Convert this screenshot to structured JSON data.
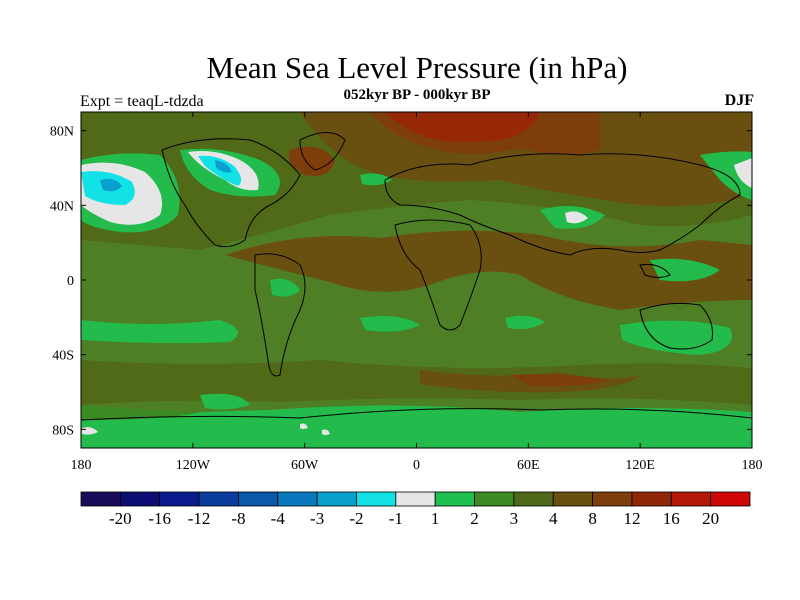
{
  "header": {
    "title": "Mean Sea Level Pressure (in hPa)",
    "subtitle": "052kyr BP - 000kyr BP",
    "experiment": "Expt = teaqL-tdzda",
    "season": "DJF"
  },
  "map": {
    "lon_ticks": [
      "180",
      "120W",
      "60W",
      "0",
      "60E",
      "120E",
      "180"
    ],
    "lat_ticks": [
      "80N",
      "40N",
      "0",
      "40S",
      "80S"
    ]
  },
  "colorbar": {
    "colors": [
      "#1a0a5a",
      "#0c0c72",
      "#071b8c",
      "#0a3c9e",
      "#0a58aa",
      "#0a78bd",
      "#0aa0cd",
      "#12e2e6",
      "#e6e6e6",
      "#1ec050",
      "#3c8a22",
      "#4e6818",
      "#6a5010",
      "#7e3e0c",
      "#902808",
      "#b41808",
      "#cf0606"
    ],
    "labels": [
      "-20",
      "-16",
      "-12",
      "-8",
      "-4",
      "-3",
      "-2",
      "-1",
      "1",
      "2",
      "3",
      "4",
      "8",
      "12",
      "16",
      "20"
    ]
  },
  "palette": {
    "background": "#4f7f24",
    "green_light": "#22bb4c",
    "green_mid": "#3c8a22",
    "olive": "#506a18",
    "brown": "#6a5010",
    "brown_dark": "#7e3e0c",
    "red": "#962808",
    "white": "#e6e6e6",
    "cyan": "#12e2e6",
    "blue": "#0aa0cd",
    "land_outline": "#000000"
  }
}
